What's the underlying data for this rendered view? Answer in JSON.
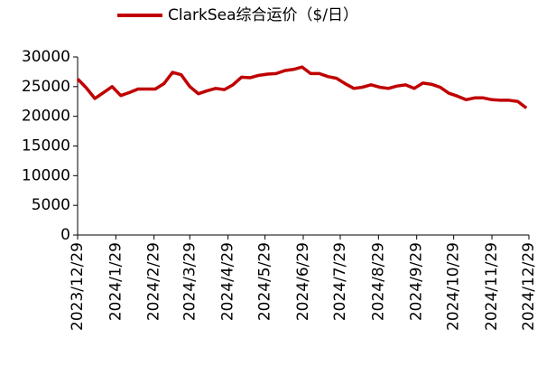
{
  "chart_data": {
    "type": "line",
    "x": [
      0,
      7,
      14,
      21,
      28,
      35,
      42,
      49,
      56,
      63,
      70,
      77,
      84,
      91,
      98,
      105,
      112,
      119,
      126,
      133,
      140,
      147,
      154,
      161,
      168,
      175,
      182,
      189,
      196,
      203,
      210,
      217,
      224,
      231,
      238,
      245,
      252,
      259,
      266,
      273,
      280,
      287,
      294,
      301,
      308,
      315,
      322,
      329,
      336,
      343,
      350,
      357,
      364
    ],
    "series": [
      {
        "name": "ClarkSea综合运价（$/日）",
        "color": "#c00000",
        "values": [
          26300,
          24800,
          23000,
          24000,
          25000,
          23500,
          24000,
          24600,
          24600,
          24600,
          25500,
          27400,
          27000,
          25000,
          23800,
          24300,
          24700,
          24500,
          25300,
          26600,
          26500,
          26900,
          27100,
          27200,
          27700,
          27900,
          28300,
          27200,
          27200,
          26700,
          26400,
          25500,
          24700,
          24900,
          25300,
          24900,
          24700,
          25100,
          25300,
          24700,
          25600,
          25400,
          24900,
          23900,
          23400,
          22800,
          23100,
          23100,
          22800,
          22700,
          22700,
          22500,
          21400
        ]
      }
    ],
    "xlim": [
      0,
      366
    ],
    "xticks": [
      {
        "value": 0,
        "label": "2023/12/29"
      },
      {
        "value": 31,
        "label": "2024/1/29"
      },
      {
        "value": 62,
        "label": "2024/2/29"
      },
      {
        "value": 91,
        "label": "2024/3/29"
      },
      {
        "value": 122,
        "label": "2024/4/29"
      },
      {
        "value": 152,
        "label": "2024/5/29"
      },
      {
        "value": 183,
        "label": "2024/6/29"
      },
      {
        "value": 213,
        "label": "2024/7/29"
      },
      {
        "value": 244,
        "label": "2024/8/29"
      },
      {
        "value": 275,
        "label": "2024/9/29"
      },
      {
        "value": 305,
        "label": "2024/10/29"
      },
      {
        "value": 336,
        "label": "2024/11/29"
      },
      {
        "value": 366,
        "label": "2024/12/29"
      }
    ],
    "ylim": [
      0,
      30000
    ],
    "yticks": [
      0,
      5000,
      10000,
      15000,
      20000,
      25000,
      30000
    ],
    "legend": "top"
  }
}
